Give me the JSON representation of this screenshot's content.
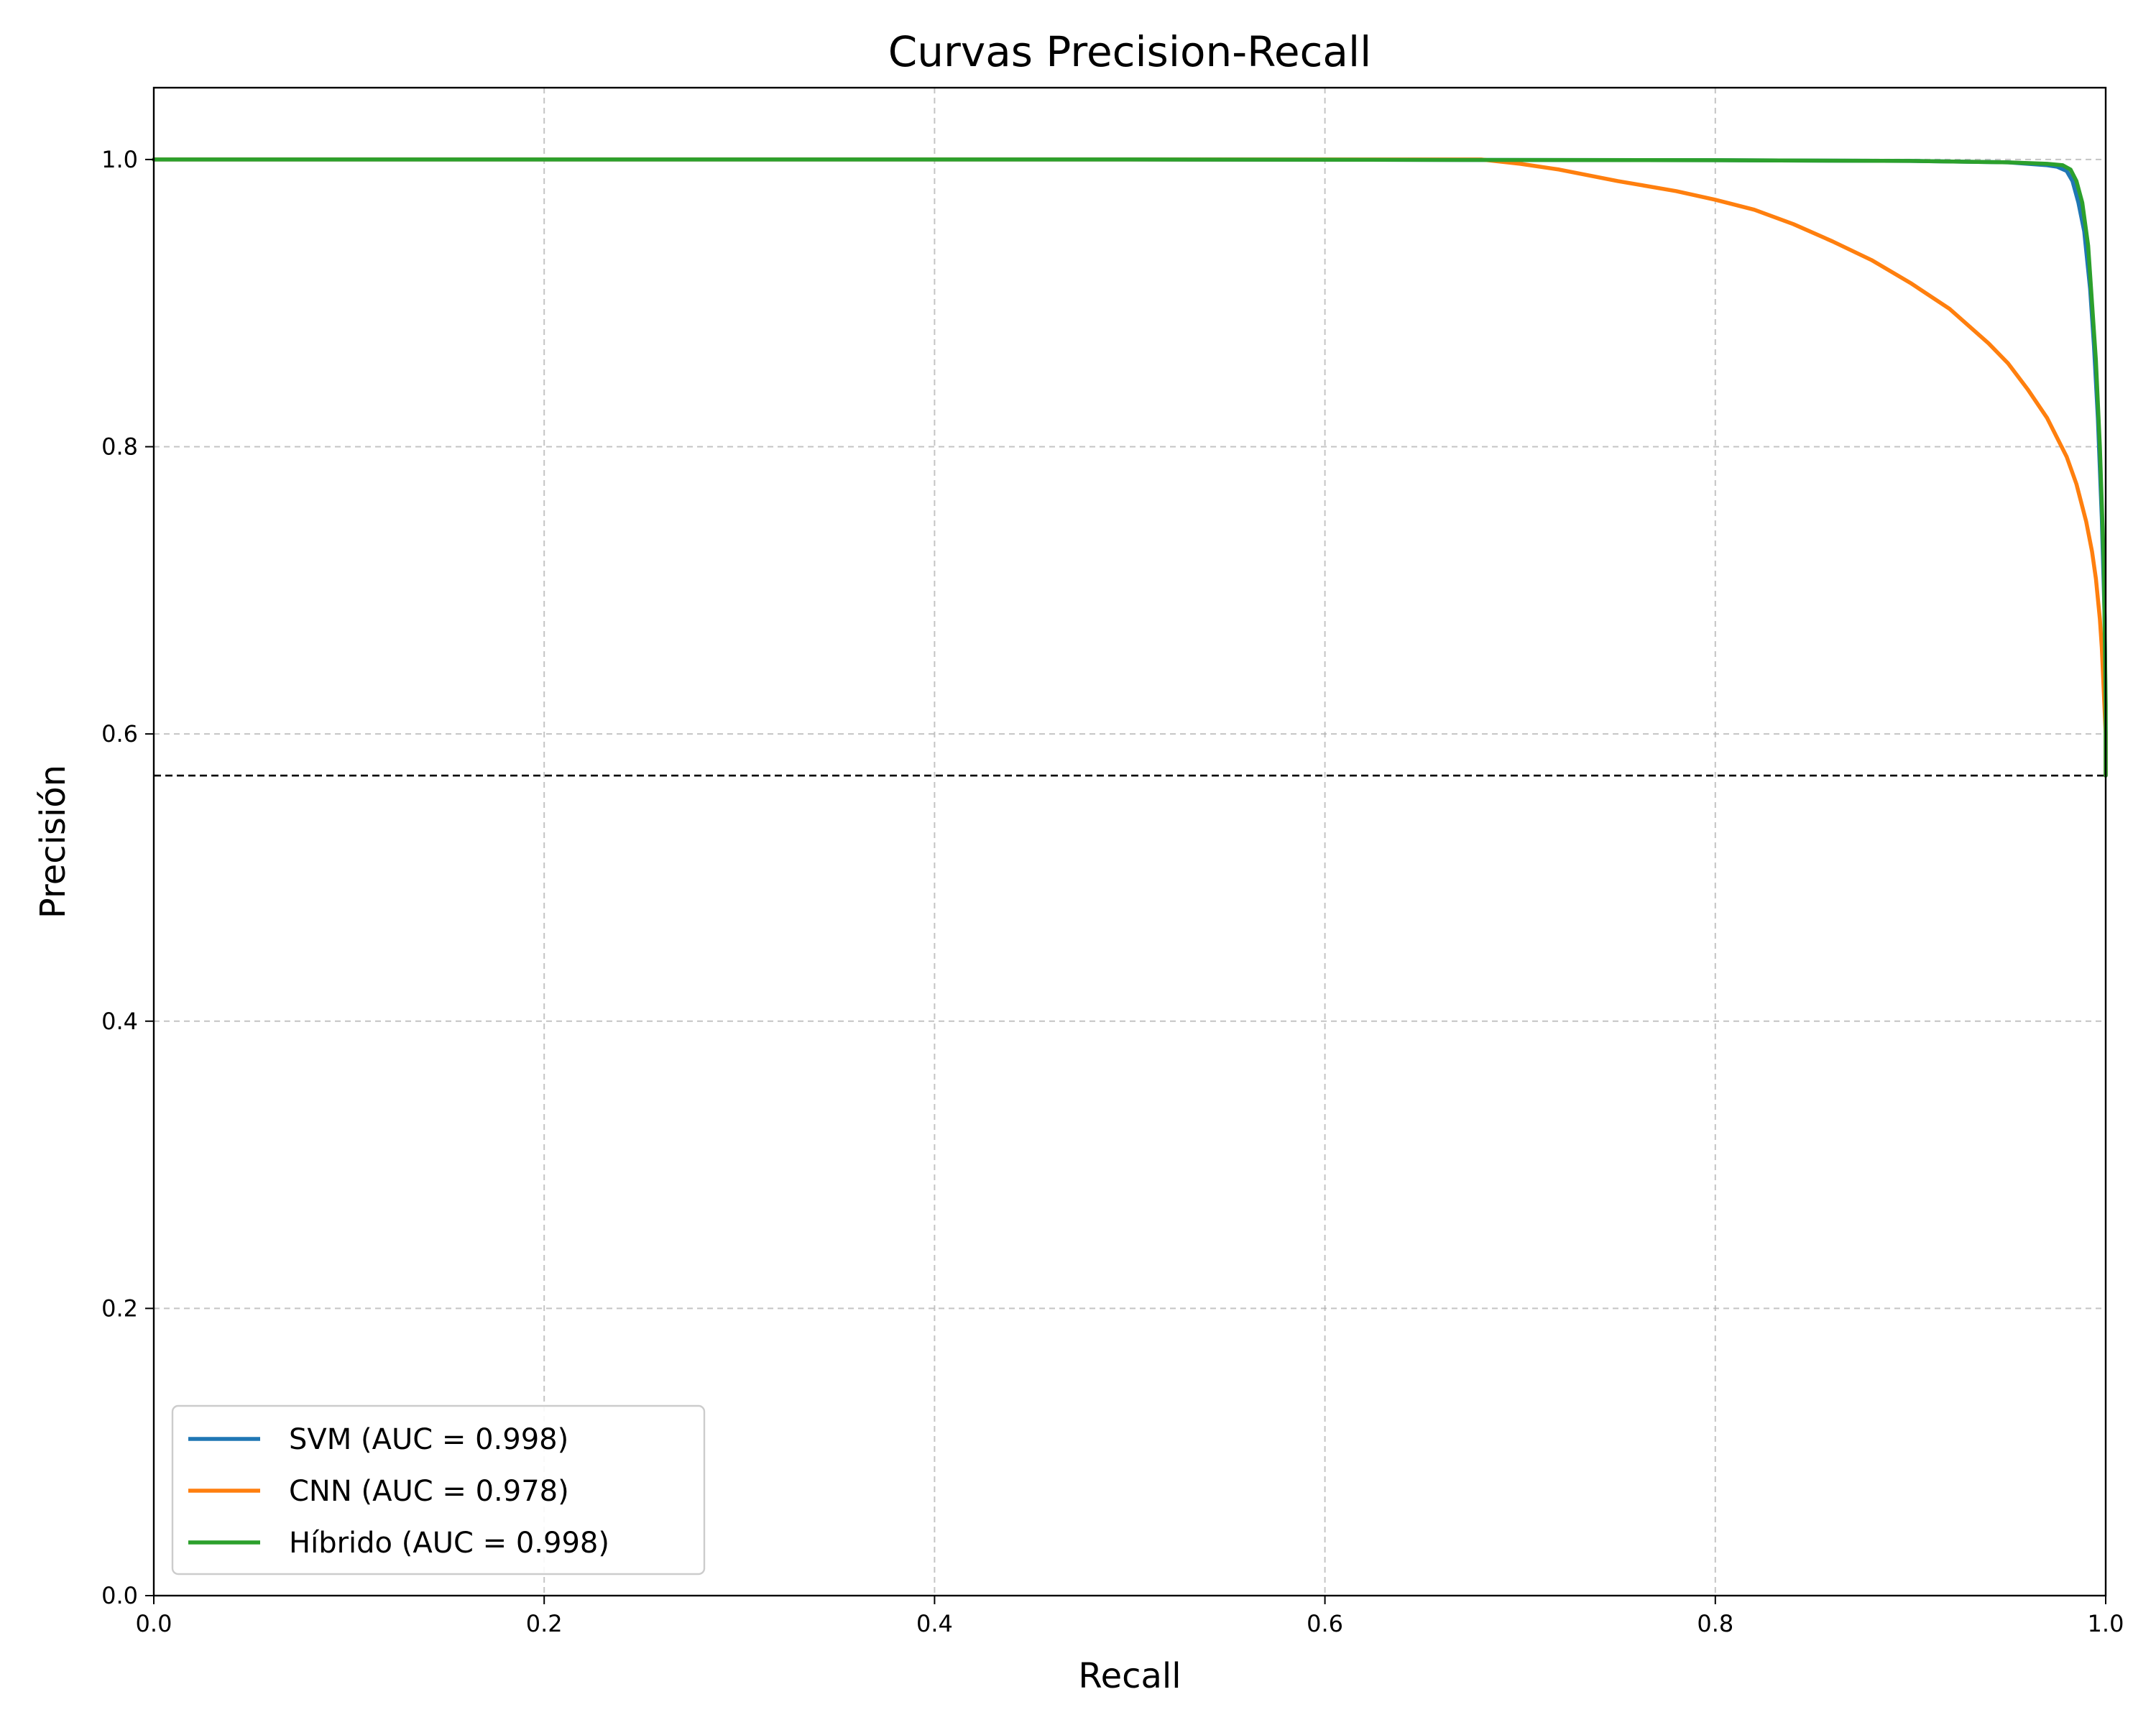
{
  "chart_data": {
    "type": "line",
    "title": "Curvas Precision-Recall",
    "xlabel": "Recall",
    "ylabel": "Precisión",
    "xlim": [
      0,
      1
    ],
    "ylim": [
      0,
      1.05
    ],
    "xticks": [
      0.0,
      0.2,
      0.4,
      0.6,
      0.8,
      1.0
    ],
    "yticks": [
      0.0,
      0.2,
      0.4,
      0.6,
      0.8,
      1.0
    ],
    "xtick_labels": [
      "0.0",
      "0.2",
      "0.4",
      "0.6",
      "0.8",
      "1.0"
    ],
    "ytick_labels": [
      "0.0",
      "0.2",
      "0.4",
      "0.6",
      "0.8",
      "1.0"
    ],
    "grid": true,
    "legend_position": "lower-left",
    "baseline": {
      "y": 0.571,
      "style": "dashed",
      "color": "#000000"
    },
    "series": [
      {
        "name": "SVM (AUC = 0.998)",
        "color": "#1f77b4",
        "x": [
          0.0,
          0.5,
          0.8,
          0.9,
          0.95,
          0.97,
          0.975,
          0.98,
          0.983,
          0.986,
          0.989,
          0.992,
          0.994,
          0.996,
          0.998,
          0.9995,
          1.0,
          1.0
        ],
        "y": [
          1.0,
          1.0,
          0.9995,
          0.999,
          0.998,
          0.996,
          0.995,
          0.992,
          0.985,
          0.97,
          0.95,
          0.91,
          0.87,
          0.82,
          0.75,
          0.68,
          0.6,
          0.571
        ]
      },
      {
        "name": "CNN (AUC = 0.978)",
        "color": "#ff7f0e",
        "x": [
          0.0,
          0.5,
          0.68,
          0.7,
          0.72,
          0.75,
          0.78,
          0.8,
          0.82,
          0.84,
          0.86,
          0.88,
          0.9,
          0.92,
          0.94,
          0.95,
          0.96,
          0.97,
          0.98,
          0.985,
          0.99,
          0.993,
          0.995,
          0.997,
          0.998,
          0.999,
          1.0,
          1.0
        ],
        "y": [
          1.0,
          1.0,
          1.0,
          0.997,
          0.993,
          0.985,
          0.978,
          0.972,
          0.965,
          0.955,
          0.943,
          0.93,
          0.914,
          0.896,
          0.872,
          0.858,
          0.84,
          0.82,
          0.793,
          0.774,
          0.748,
          0.727,
          0.708,
          0.68,
          0.66,
          0.63,
          0.6,
          0.571
        ]
      },
      {
        "name": "Híbrido (AUC = 0.998)",
        "color": "#2ca02c",
        "x": [
          0.0,
          0.5,
          0.8,
          0.9,
          0.95,
          0.97,
          0.978,
          0.982,
          0.985,
          0.988,
          0.991,
          0.993,
          0.995,
          0.997,
          0.999,
          1.0,
          1.0
        ],
        "y": [
          1.0,
          1.0,
          0.9995,
          0.999,
          0.998,
          0.997,
          0.996,
          0.993,
          0.985,
          0.97,
          0.94,
          0.9,
          0.86,
          0.8,
          0.72,
          0.62,
          0.571
        ]
      }
    ]
  }
}
